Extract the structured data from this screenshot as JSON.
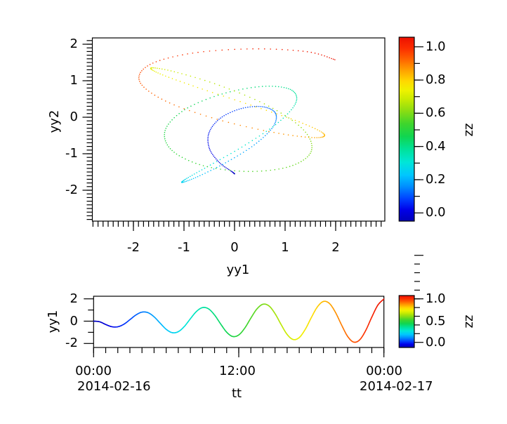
{
  "figure": {
    "background": "#ffffff",
    "type": "two-panel parametric plot with colorbars"
  },
  "colormap": {
    "name": "jet-like",
    "stops": [
      [
        0.0,
        "#0000B8"
      ],
      [
        0.06,
        "#0000E8"
      ],
      [
        0.12,
        "#0040FF"
      ],
      [
        0.19,
        "#0090FF"
      ],
      [
        0.25,
        "#00C6FF"
      ],
      [
        0.32,
        "#00E6D8"
      ],
      [
        0.39,
        "#00E29A"
      ],
      [
        0.46,
        "#10D550"
      ],
      [
        0.53,
        "#3FD52C"
      ],
      [
        0.6,
        "#8CDD12"
      ],
      [
        0.66,
        "#C6EA02"
      ],
      [
        0.71,
        "#EEF200"
      ],
      [
        0.76,
        "#FFD900"
      ],
      [
        0.82,
        "#FFA100"
      ],
      [
        0.88,
        "#FF6300"
      ],
      [
        0.94,
        "#FC2D00"
      ],
      [
        1.0,
        "#EC1000"
      ]
    ]
  },
  "top_panel": {
    "xlabel": "yy1",
    "ylabel": "yy2",
    "xtick_labels": [
      "-2",
      "-1",
      "0",
      "1",
      "2"
    ],
    "xtick_values": [
      -2,
      -1,
      0,
      1,
      2
    ],
    "ytick_labels": [
      "2",
      "1",
      "0",
      "-1",
      "-2"
    ],
    "ytick_values": [
      2,
      1,
      0,
      -1,
      -2
    ],
    "x_minor": {
      "from": -2.8,
      "to": 2.9,
      "step": 0.1
    },
    "y_minor": {
      "from": -2.8,
      "to": 2.1,
      "step": 0.1
    },
    "xlim": [
      -2.81,
      2.97
    ],
    "ylim": [
      -2.85,
      2.17
    ],
    "colorbar": {
      "label": "zz",
      "tick_labels": [
        "1.0",
        "0.8",
        "0.6",
        "0.4",
        "0.2",
        "0.0"
      ],
      "tick_values": [
        1.0,
        0.8,
        0.6,
        0.4,
        0.2,
        0.0
      ],
      "minor_step": 0.1,
      "range": [
        -0.05,
        1.05
      ]
    }
  },
  "bottom_panel": {
    "xlabel": "tt",
    "ylabel": "yy1",
    "xtick_labels": [
      "00:00",
      "12:00",
      "00:00"
    ],
    "xtick_values_hours": [
      0,
      12,
      24
    ],
    "date_labels": [
      "2014-02-16",
      "2014-02-17"
    ],
    "x_minor_step_hours": 1,
    "ytick_labels": [
      "2",
      "0",
      "-2"
    ],
    "ytick_values": [
      2,
      0,
      -2
    ],
    "y_minor_values": [
      1,
      -1
    ],
    "xlim_hours": [
      0,
      24
    ],
    "ylim": [
      -2.36,
      2.23
    ],
    "colorbar": {
      "label": "zz",
      "tick_labels": [
        "1.0",
        "0.5",
        "0.0"
      ],
      "tick_values": [
        1.0,
        0.5,
        0.0
      ],
      "minor_step": 0.1,
      "range": [
        -0.12,
        1.08
      ]
    }
  },
  "chart_data": {
    "type": [
      "scatter",
      "line"
    ],
    "description": "Panel 1: parametric dotted curve yy2 vs yy1 colored by zz (jet). Panel 2: time series yy1 vs tt over 2014-02-16 00:00 to 2014-02-17 00:00 colored by zz.",
    "t_hours": [
      0,
      0.5,
      1,
      1.5,
      2,
      2.5,
      3,
      3.5,
      4,
      4.5,
      5,
      5.5,
      6,
      6.5,
      7,
      7.5,
      8,
      8.5,
      9,
      9.5,
      10,
      10.5,
      11,
      11.5,
      12,
      12.5,
      13,
      13.5,
      14,
      14.5,
      15,
      15.5,
      16,
      16.5,
      17,
      17.5,
      18,
      18.5,
      19,
      19.5,
      20,
      20.5,
      21,
      21.5,
      22,
      22.5,
      23,
      23.5,
      24
    ],
    "yy1": [
      0,
      -0.054,
      -0.298,
      -0.496,
      -0.504,
      -0.276,
      0.131,
      0.556,
      0.81,
      0.76,
      0.39,
      -0.178,
      -0.729,
      -1.032,
      -0.943,
      -0.478,
      0.214,
      0.866,
      1.215,
      1.105,
      0.552,
      -0.246,
      -0.987,
      -1.373,
      -1.235,
      -0.617,
      0.273,
      1.092,
      1.515,
      1.365,
      0.676,
      -0.299,
      -1.191,
      -1.644,
      -1.47,
      -0.73,
      0.321,
      1.278,
      1.765,
      1.583,
      0.78,
      -0.343,
      -1.364,
      -1.877,
      -1.672,
      -0.828,
      0.363,
      1.44,
      1.984
    ],
    "yy2": [
      -1.55,
      -1.488,
      -1.243,
      -0.86,
      -0.421,
      -0.022,
      0.237,
      0.288,
      0.109,
      -0.265,
      -0.758,
      -1.248,
      -1.628,
      -1.785,
      -1.675,
      -1.309,
      -0.759,
      -0.143,
      0.408,
      0.76,
      0.844,
      0.637,
      0.206,
      -0.363,
      -0.912,
      -1.327,
      -1.485,
      -1.348,
      -0.94,
      -0.346,
      0.305,
      0.873,
      1.247,
      1.353,
      1.187,
      0.815,
      0.332,
      -0.127,
      -0.453,
      -0.559,
      -0.417,
      -0.057,
      0.443,
      0.98,
      1.445,
      1.757,
      1.873,
      1.794,
      1.576
    ],
    "zz": [
      0,
      0.021,
      0.042,
      0.063,
      0.083,
      0.104,
      0.125,
      0.146,
      0.167,
      0.188,
      0.208,
      0.229,
      0.25,
      0.271,
      0.292,
      0.313,
      0.333,
      0.354,
      0.375,
      0.396,
      0.417,
      0.438,
      0.458,
      0.479,
      0.5,
      0.521,
      0.542,
      0.563,
      0.583,
      0.604,
      0.625,
      0.646,
      0.667,
      0.688,
      0.708,
      0.729,
      0.75,
      0.771,
      0.792,
      0.813,
      0.833,
      0.854,
      0.875,
      0.896,
      0.917,
      0.938,
      0.958,
      0.979,
      1
    ],
    "zlim": [
      0,
      1
    ],
    "grid": false,
    "legend": "colorbar right of each panel"
  }
}
